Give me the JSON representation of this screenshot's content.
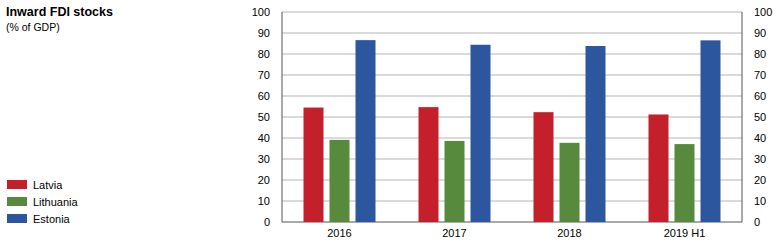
{
  "chart_data": {
    "type": "bar",
    "title": "Inward FDI stocks",
    "subtitle": "(% of GDP)",
    "categories": [
      "2016",
      "2017",
      "2018",
      "2019 H1"
    ],
    "series": [
      {
        "name": "Latvia",
        "color": "#c3202b",
        "values": [
          54.5,
          54.7,
          52.3,
          51.2
        ]
      },
      {
        "name": "Lithuania",
        "color": "#578a3c",
        "values": [
          39.1,
          38.6,
          37.7,
          37.1
        ]
      },
      {
        "name": "Estonia",
        "color": "#2c569d",
        "values": [
          86.6,
          84.4,
          83.8,
          86.5
        ]
      }
    ],
    "ylim": [
      0,
      100
    ],
    "yticks": [
      0,
      10,
      20,
      30,
      40,
      50,
      60,
      70,
      80,
      90,
      100
    ],
    "grid": true,
    "legend": "lower left"
  }
}
